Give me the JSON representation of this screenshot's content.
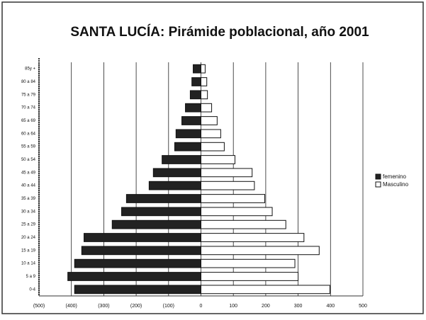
{
  "chart_data": {
    "type": "pyramid",
    "title": "SANTA LUCÍA: Pirámide poblacional,  año 2001",
    "categories": [
      "0-4",
      "5 a 9",
      "10 a 14",
      "15 a 19",
      "20 a 24",
      "25 a 29",
      "30 a 34",
      "35 a 39",
      "40 a 44",
      "45 a 49",
      "50 a 54",
      "55 a 59",
      "60 a 64",
      "65 a 69",
      "70 a 74",
      "75 a 79",
      "80 a 84",
      "85y +"
    ],
    "series": [
      {
        "name": "femenino",
        "color": "#222222",
        "values": [
          -390,
          -411,
          -390,
          -368,
          -361,
          -274,
          -245,
          -230,
          -160,
          -147,
          -120,
          -81,
          -77,
          -59,
          -48,
          -33,
          -28,
          -24
        ]
      },
      {
        "name": "Masculino",
        "color": "#ffffff",
        "values": [
          398,
          300,
          290,
          365,
          318,
          262,
          220,
          197,
          165,
          158,
          105,
          72,
          61,
          50,
          33,
          20,
          18,
          13
        ]
      }
    ],
    "xlim": [
      -500,
      500
    ],
    "xticks": [
      {
        "value": -500,
        "label": "(500)"
      },
      {
        "value": -400,
        "label": "(400)"
      },
      {
        "value": -300,
        "label": "(300)"
      },
      {
        "value": -200,
        "label": "(200)"
      },
      {
        "value": -100,
        "label": "(100)"
      },
      0,
      100,
      200,
      300,
      400,
      500
    ],
    "grid": true,
    "legend": "right"
  }
}
